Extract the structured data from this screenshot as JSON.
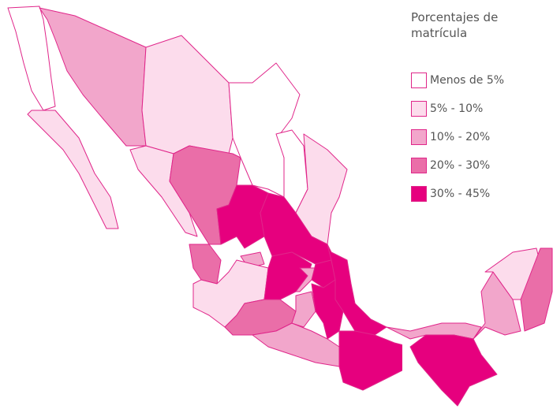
{
  "legend": {
    "title": "Porcentajes de matrícula",
    "items": [
      {
        "label": "Menos de 5%",
        "color": "#ffffff"
      },
      {
        "label": "5% - 10%",
        "color": "#fcdcec"
      },
      {
        "label": "10% - 20%",
        "color": "#f2a6cb"
      },
      {
        "label": "20% - 30%",
        "color": "#ea6ea8"
      },
      {
        "label": "30% - 45%",
        "color": "#e6007e"
      }
    ]
  }
}
